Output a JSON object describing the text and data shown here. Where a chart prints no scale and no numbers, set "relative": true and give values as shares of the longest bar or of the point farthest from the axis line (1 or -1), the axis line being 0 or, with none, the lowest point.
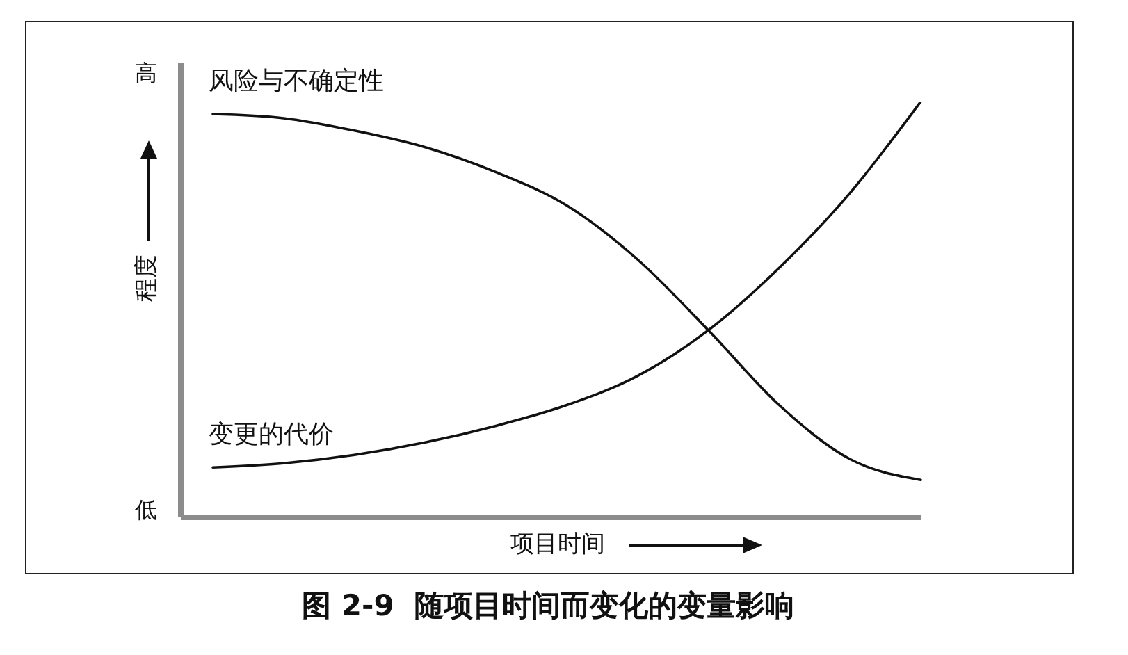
{
  "chart_data": {
    "type": "line",
    "title": "图 2-9  随项目时间而变化的变量影响",
    "xlabel": "项目时间",
    "ylabel": "程度",
    "annotations": [
      "高",
      "低"
    ],
    "categories": [
      null,
      null,
      null,
      null,
      null,
      null,
      null,
      null,
      null,
      null,
      null
    ],
    "relative": true,
    "marker": "none",
    "line_style": "solid",
    "series": [
      {
        "name": "风险与不确定性",
        "color": "#111111",
        "values": [
          0.97,
          0.96,
          0.93,
          0.89,
          0.83,
          0.75,
          0.62,
          0.45,
          0.27,
          0.14,
          0.09
        ]
      },
      {
        "name": "变更的代价",
        "color": "#111111",
        "values": [
          0.12,
          0.13,
          0.15,
          0.18,
          0.22,
          0.27,
          0.34,
          0.45,
          0.6,
          0.78,
          1
        ]
      }
    ]
  }
}
